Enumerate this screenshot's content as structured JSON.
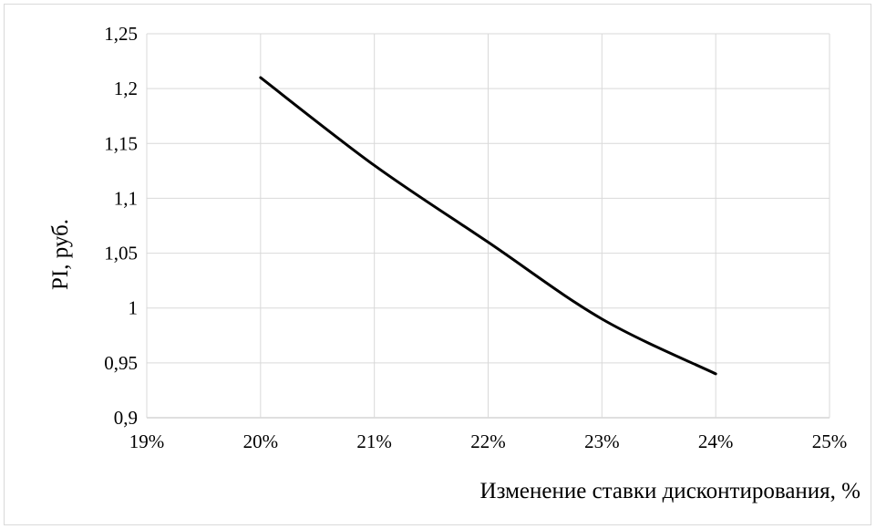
{
  "chart_data": {
    "type": "line",
    "title": "",
    "xlabel": "Изменение ставки дисконтирования, %",
    "ylabel": "PI, руб.",
    "x_ticks": [
      "19%",
      "20%",
      "21%",
      "22%",
      "23%",
      "24%",
      "25%"
    ],
    "y_ticks": [
      "0,9",
      "0,95",
      "1",
      "1,05",
      "1,1",
      "1,15",
      "1,2",
      "1,25"
    ],
    "xlim": [
      19,
      25
    ],
    "ylim": [
      0.9,
      1.25
    ],
    "grid": true,
    "legend": "none",
    "series": [
      {
        "color": "#000000",
        "x": [
          20,
          21,
          22,
          23,
          24
        ],
        "y": [
          1.21,
          1.13,
          1.06,
          0.99,
          0.94
        ]
      }
    ]
  }
}
